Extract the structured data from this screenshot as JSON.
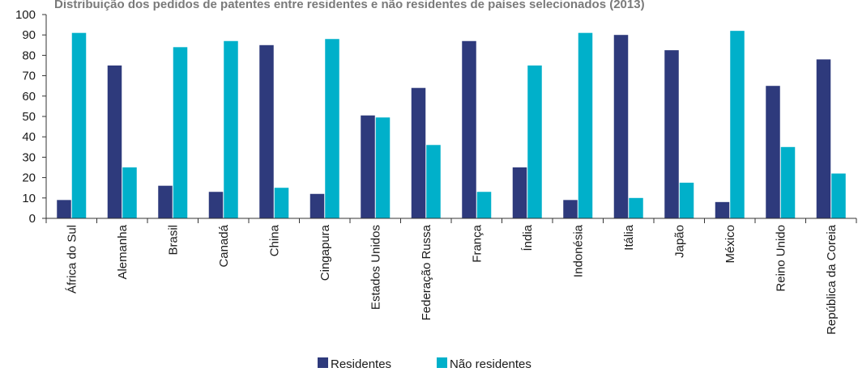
{
  "chart_data": {
    "type": "bar",
    "title": "Distribuição dos pedidos de patentes entre residentes e não residentes de países selecionados (2013)",
    "categories": [
      "África do Sul",
      "Alemanha",
      "Brasil",
      "Canadá",
      "China",
      "Cingapura",
      "Estados Unidos",
      "Federação Russa",
      "França",
      "Índia",
      "Indonésia",
      "Itália",
      "Japão",
      "México",
      "Reino Unido",
      "República da Coreia"
    ],
    "series": [
      {
        "name": "Residentes",
        "color": "#2e3a7c",
        "values": [
          9,
          75,
          16,
          13,
          85,
          12,
          50.5,
          64,
          87,
          25,
          9,
          90,
          82.5,
          8,
          65,
          78
        ]
      },
      {
        "name": "Não residentes",
        "color": "#00b0ca",
        "values": [
          91,
          25,
          84,
          87,
          15,
          88,
          49.5,
          36,
          13,
          75,
          91,
          10,
          17.5,
          92,
          35,
          22
        ]
      }
    ],
    "ylim": [
      0,
      100
    ],
    "yticks": [
      "0",
      "10",
      "20",
      "30",
      "40",
      "50",
      "60",
      "70",
      "80",
      "90",
      "100"
    ],
    "xlabel": "",
    "ylabel": "",
    "grid": false,
    "legend_position": "bottom"
  }
}
